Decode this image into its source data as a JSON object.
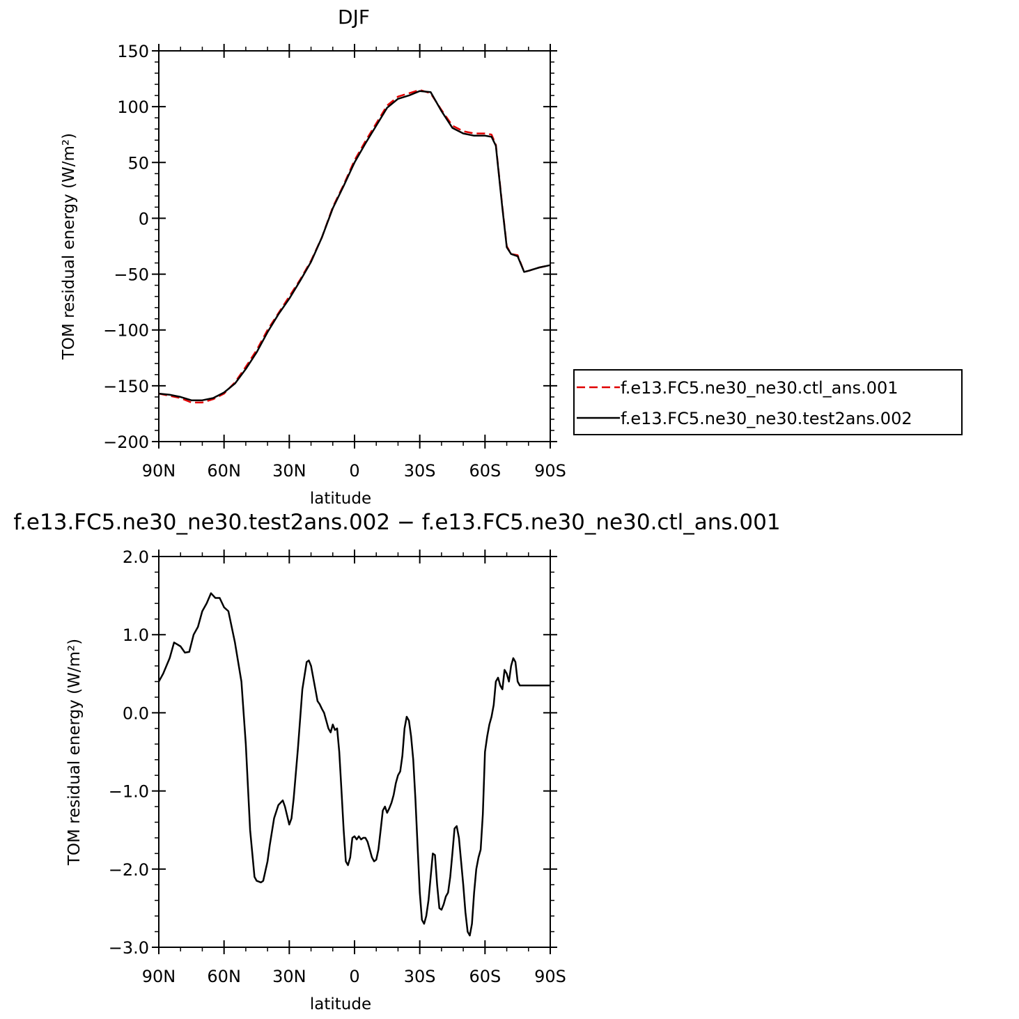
{
  "chart_data": [
    {
      "type": "line",
      "title": "DJF",
      "xlabel": "latitude",
      "ylabel": "TOM residual energy (W/m²)",
      "xlim": [
        90,
        -90
      ],
      "ylim": [
        -200,
        150
      ],
      "x_tick_values": [
        90,
        60,
        30,
        0,
        -30,
        -60,
        -90
      ],
      "x_tick_labels": [
        "90N",
        "60N",
        "30N",
        "0",
        "30S",
        "60S",
        "90S"
      ],
      "y_tick_values": [
        150,
        100,
        50,
        0,
        -50,
        -100,
        -150,
        -200
      ],
      "y_tick_labels": [
        "150",
        "100",
        "50",
        "0",
        "−50",
        "−100",
        "−150",
        "−200"
      ],
      "legend_position": "right",
      "series": [
        {
          "name": "f.e13.FC5.ne30_ne30.ctl_ans.001",
          "color": "#e00000",
          "dash": "dashed",
          "x": [
            90,
            85,
            80,
            75,
            70,
            65,
            60,
            55,
            50,
            45,
            40,
            35,
            30,
            25,
            20,
            15,
            10,
            5,
            0,
            -5,
            -10,
            -15,
            -20,
            -25,
            -30,
            -35,
            -40,
            -45,
            -50,
            -55,
            -60,
            -63,
            -65,
            -68,
            -70,
            -72,
            -75,
            -78,
            -80,
            -85,
            -90
          ],
          "values": [
            -157,
            -159,
            -161,
            -165,
            -165,
            -162,
            -157,
            -147,
            -133,
            -118,
            -100,
            -85,
            -70,
            -55,
            -38,
            -17,
            10,
            30,
            52,
            69,
            85,
            101,
            109,
            112,
            115,
            112,
            97,
            83,
            78,
            76,
            76,
            75,
            66,
            10,
            -25,
            -32,
            -33,
            -48,
            -47,
            -44,
            -42
          ]
        },
        {
          "name": "f.e13.FC5.ne30_ne30.test2ans.002",
          "color": "#000000",
          "dash": "solid",
          "x": [
            90,
            85,
            80,
            75,
            70,
            65,
            60,
            55,
            50,
            45,
            40,
            35,
            30,
            25,
            20,
            15,
            10,
            5,
            0,
            -5,
            -10,
            -15,
            -20,
            -25,
            -30,
            -35,
            -40,
            -45,
            -50,
            -55,
            -60,
            -63,
            -65,
            -68,
            -70,
            -72,
            -75,
            -78,
            -80,
            -85,
            -90
          ],
          "values": [
            -157,
            -158,
            -160,
            -163,
            -163,
            -161,
            -156,
            -148,
            -135,
            -120,
            -102,
            -86,
            -72,
            -56,
            -39,
            -17,
            9,
            29,
            50,
            67,
            83,
            99,
            107,
            110,
            114,
            113,
            96,
            81,
            76,
            74,
            74,
            73,
            65,
            9,
            -26,
            -32,
            -34,
            -48,
            -47,
            -44,
            -42
          ]
        }
      ]
    },
    {
      "type": "line",
      "title": "f.e13.FC5.ne30_ne30.test2ans.002 − f.e13.FC5.ne30_ne30.ctl_ans.001",
      "xlabel": "latitude",
      "ylabel": "TOM residual energy (W/m²)",
      "xlim": [
        90,
        -90
      ],
      "ylim": [
        -3.0,
        2.0
      ],
      "x_tick_values": [
        90,
        60,
        30,
        0,
        -30,
        -60,
        -90
      ],
      "x_tick_labels": [
        "90N",
        "60N",
        "30N",
        "0",
        "30S",
        "60S",
        "90S"
      ],
      "y_tick_values": [
        2.0,
        1.0,
        0.0,
        -1.0,
        -2.0,
        -3.0
      ],
      "y_tick_labels": [
        "2.0",
        "1.0",
        "0.0",
        "−1.0",
        "−2.0",
        "−3.0"
      ],
      "series": [
        {
          "color": "#000000",
          "dash": "solid",
          "x": [
            90,
            88,
            85,
            83,
            80,
            78,
            76,
            74,
            72,
            70,
            68,
            66,
            64,
            62,
            60,
            58,
            55,
            52,
            50,
            48,
            46,
            45,
            43,
            42,
            40,
            39,
            37,
            35,
            33,
            32,
            30,
            29,
            28,
            26,
            24,
            22,
            21,
            20,
            18,
            17,
            16,
            15,
            14,
            13,
            12,
            11,
            10,
            9,
            8,
            7,
            6,
            5,
            4,
            3,
            2,
            1,
            0,
            -1,
            -2,
            -3,
            -4,
            -5,
            -6,
            -7,
            -8,
            -9,
            -10,
            -11,
            -12,
            -13,
            -14,
            -15,
            -16,
            -17,
            -18,
            -19,
            -20,
            -21,
            -22,
            -23,
            -24,
            -25,
            -26,
            -27,
            -28,
            -29,
            -30,
            -31,
            -32,
            -33,
            -34,
            -35,
            -36,
            -37,
            -38,
            -39,
            -40,
            -41,
            -42,
            -43,
            -44,
            -45,
            -46,
            -47,
            -48,
            -49,
            -50,
            -51,
            -52,
            -53,
            -54,
            -55,
            -56,
            -57,
            -58,
            -59,
            -60,
            -61,
            -62,
            -63,
            -64,
            -65,
            -66,
            -67,
            -68,
            -69,
            -70,
            -71,
            -72,
            -73,
            -74,
            -75,
            -76,
            -77,
            -78,
            -79,
            -80,
            -81,
            -82,
            -83,
            -84,
            -85,
            -86,
            -87,
            -88,
            -89,
            -90
          ],
          "values": [
            0.4,
            0.5,
            0.7,
            0.9,
            0.85,
            0.77,
            0.78,
            1.0,
            1.1,
            1.3,
            1.4,
            1.53,
            1.47,
            1.47,
            1.35,
            1.3,
            0.9,
            0.4,
            -0.4,
            -1.5,
            -2.1,
            -2.15,
            -2.17,
            -2.15,
            -1.9,
            -1.7,
            -1.35,
            -1.18,
            -1.12,
            -1.2,
            -1.43,
            -1.35,
            -1.1,
            -0.45,
            0.3,
            0.65,
            0.67,
            0.6,
            0.3,
            0.15,
            0.11,
            0.05,
            0.0,
            -0.1,
            -0.2,
            -0.25,
            -0.15,
            -0.22,
            -0.2,
            -0.5,
            -1.0,
            -1.5,
            -1.9,
            -1.95,
            -1.85,
            -1.6,
            -1.58,
            -1.62,
            -1.58,
            -1.62,
            -1.6,
            -1.6,
            -1.65,
            -1.75,
            -1.85,
            -1.9,
            -1.88,
            -1.75,
            -1.5,
            -1.25,
            -1.2,
            -1.28,
            -1.22,
            -1.15,
            -1.05,
            -0.9,
            -0.8,
            -0.75,
            -0.55,
            -0.2,
            -0.05,
            -0.1,
            -0.3,
            -0.6,
            -1.1,
            -1.7,
            -2.3,
            -2.65,
            -2.7,
            -2.6,
            -2.4,
            -2.1,
            -1.8,
            -1.82,
            -2.2,
            -2.5,
            -2.52,
            -2.45,
            -2.35,
            -2.3,
            -2.1,
            -1.8,
            -1.48,
            -1.45,
            -1.6,
            -1.9,
            -2.2,
            -2.55,
            -2.8,
            -2.85,
            -2.7,
            -2.3,
            -2.0,
            -1.85,
            -1.75,
            -1.3,
            -0.5,
            -0.3,
            -0.15,
            -0.05,
            0.1,
            0.4,
            0.45,
            0.35,
            0.3,
            0.55,
            0.5,
            0.4,
            0.6,
            0.7,
            0.65,
            0.4,
            0.35,
            0.35,
            0.35,
            0.35,
            0.35,
            0.35,
            0.35,
            0.35,
            0.35,
            0.35,
            0.35,
            0.35,
            0.35,
            0.35,
            0.35
          ]
        }
      ]
    }
  ]
}
